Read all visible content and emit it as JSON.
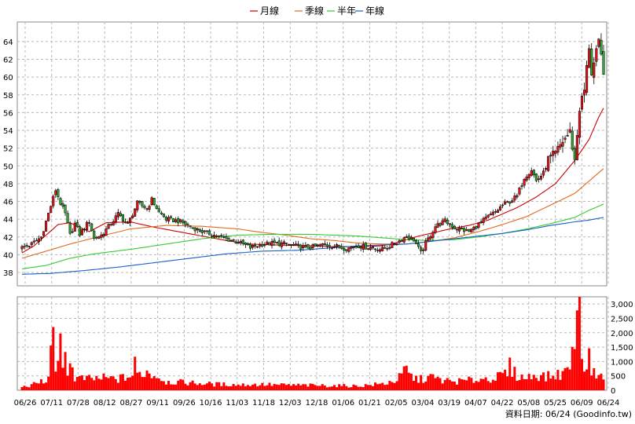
{
  "chart_data": [
    {
      "type": "candlestick",
      "grid": true,
      "legend_position": "top-center",
      "legend": [
        {
          "name": "月線",
          "color": "#cc0000"
        },
        {
          "name": "季線",
          "color": "#e06a1b"
        },
        {
          "name": "半年",
          "color": "#33cc33"
        },
        {
          "name": "年線",
          "color": "#1a5fcc"
        }
      ],
      "yticks": [
        "38",
        "40",
        "42",
        "44",
        "46",
        "48",
        "50",
        "52",
        "54",
        "56",
        "58",
        "60",
        "62",
        "64"
      ],
      "ylim": [
        36.5,
        66.2
      ],
      "x_labels": [
        "06/26",
        "07/11",
        "07/28",
        "08/12",
        "08/27",
        "09/11",
        "09/26",
        "10/16",
        "11/03",
        "11/18",
        "12/03",
        "12/18",
        "01/06",
        "01/21",
        "02/05",
        "03/04",
        "03/19",
        "04/07",
        "04/22",
        "05/08",
        "05/25",
        "06/09",
        "06/24"
      ],
      "series": [
        {
          "name": "月線",
          "color": "#cc0000",
          "knots": [
            [
              0,
              40.2
            ],
            [
              5,
              41.0
            ],
            [
              10,
              42.2
            ],
            [
              15,
              43.4
            ],
            [
              20,
              43.6
            ],
            [
              28,
              42.6
            ],
            [
              35,
              43.6
            ],
            [
              45,
              43.7
            ],
            [
              55,
              43.1
            ],
            [
              65,
              42.6
            ],
            [
              75,
              42.1
            ],
            [
              85,
              41.6
            ],
            [
              95,
              41.2
            ],
            [
              105,
              41.1
            ],
            [
              120,
              41.0
            ],
            [
              130,
              40.9
            ],
            [
              140,
              40.9
            ],
            [
              150,
              41.0
            ],
            [
              155,
              41.3
            ],
            [
              160,
              41.7
            ],
            [
              165,
              42.1
            ],
            [
              170,
              42.4
            ],
            [
              178,
              42.9
            ],
            [
              186,
              43.3
            ],
            [
              194,
              43.9
            ],
            [
              200,
              44.6
            ],
            [
              206,
              45.3
            ],
            [
              214,
              46.5
            ],
            [
              222,
              48.0
            ],
            [
              230,
              50.6
            ],
            [
              236,
              53.0
            ],
            [
              240,
              55.5
            ],
            [
              242,
              56.5
            ]
          ]
        },
        {
          "name": "季線",
          "color": "#e06a1b",
          "knots": [
            [
              0,
              39.6
            ],
            [
              10,
              40.4
            ],
            [
              20,
              41.2
            ],
            [
              30,
              41.9
            ],
            [
              45,
              42.9
            ],
            [
              60,
              43.3
            ],
            [
              75,
              43.2
            ],
            [
              90,
              42.9
            ],
            [
              100,
              42.5
            ],
            [
              110,
              42.2
            ],
            [
              120,
              41.8
            ],
            [
              130,
              41.6
            ],
            [
              140,
              41.3
            ],
            [
              150,
              41.2
            ],
            [
              160,
              41.2
            ],
            [
              170,
              41.5
            ],
            [
              180,
              41.9
            ],
            [
              190,
              42.6
            ],
            [
              200,
              43.4
            ],
            [
              210,
              44.3
            ],
            [
              220,
              45.6
            ],
            [
              230,
              46.9
            ],
            [
              236,
              48.3
            ],
            [
              242,
              49.7
            ]
          ]
        },
        {
          "name": "半年",
          "color": "#33cc33",
          "knots": [
            [
              0,
              38.4
            ],
            [
              10,
              38.8
            ],
            [
              20,
              39.6
            ],
            [
              30,
              40.1
            ],
            [
              45,
              40.6
            ],
            [
              60,
              41.2
            ],
            [
              75,
              41.8
            ],
            [
              90,
              42.2
            ],
            [
              105,
              42.3
            ],
            [
              120,
              42.3
            ],
            [
              130,
              42.2
            ],
            [
              140,
              42.1
            ],
            [
              150,
              41.9
            ],
            [
              160,
              41.7
            ],
            [
              170,
              41.6
            ],
            [
              180,
              41.7
            ],
            [
              190,
              42.0
            ],
            [
              200,
              42.4
            ],
            [
              210,
              42.9
            ],
            [
              220,
              43.5
            ],
            [
              230,
              44.2
            ],
            [
              236,
              45.0
            ],
            [
              242,
              45.7
            ]
          ]
        },
        {
          "name": "年線",
          "color": "#1a5fcc",
          "knots": [
            [
              0,
              37.8
            ],
            [
              12,
              37.9
            ],
            [
              25,
              38.2
            ],
            [
              40,
              38.6
            ],
            [
              55,
              39.1
            ],
            [
              70,
              39.6
            ],
            [
              85,
              40.1
            ],
            [
              100,
              40.4
            ],
            [
              115,
              40.5
            ],
            [
              130,
              40.8
            ],
            [
              140,
              41.0
            ],
            [
              150,
              41.1
            ],
            [
              160,
              41.2
            ],
            [
              170,
              41.5
            ],
            [
              180,
              41.8
            ],
            [
              190,
              42.1
            ],
            [
              200,
              42.4
            ],
            [
              210,
              42.8
            ],
            [
              220,
              43.3
            ],
            [
              230,
              43.7
            ],
            [
              236,
              43.9
            ],
            [
              242,
              44.2
            ]
          ]
        }
      ],
      "price_knots": [
        [
          0,
          40.8
        ],
        [
          4,
          41.2
        ],
        [
          8,
          42.0
        ],
        [
          12,
          45.5
        ],
        [
          14,
          47.3
        ],
        [
          16,
          45.8
        ],
        [
          18,
          44.6
        ],
        [
          20,
          42.2
        ],
        [
          22,
          43.5
        ],
        [
          24,
          42.3
        ],
        [
          28,
          43.8
        ],
        [
          30,
          41.8
        ],
        [
          33,
          42.2
        ],
        [
          37,
          43.5
        ],
        [
          40,
          44.6
        ],
        [
          44,
          43.4
        ],
        [
          48,
          45.8
        ],
        [
          52,
          45.2
        ],
        [
          54,
          46.2
        ],
        [
          57,
          44.8
        ],
        [
          60,
          44.0
        ],
        [
          65,
          43.8
        ],
        [
          70,
          43.2
        ],
        [
          75,
          42.6
        ],
        [
          80,
          42.2
        ],
        [
          85,
          41.8
        ],
        [
          90,
          41.4
        ],
        [
          95,
          40.8
        ],
        [
          100,
          41.2
        ],
        [
          105,
          41.3
        ],
        [
          110,
          41.2
        ],
        [
          115,
          40.9
        ],
        [
          120,
          40.8
        ],
        [
          125,
          41.1
        ],
        [
          130,
          41.0
        ],
        [
          135,
          40.7
        ],
        [
          140,
          41.0
        ],
        [
          145,
          40.8
        ],
        [
          150,
          40.6
        ],
        [
          156,
          41.4
        ],
        [
          160,
          42.1
        ],
        [
          163,
          41.7
        ],
        [
          166,
          40.2
        ],
        [
          168,
          41.3
        ],
        [
          172,
          43.2
        ],
        [
          176,
          43.8
        ],
        [
          180,
          43.0
        ],
        [
          186,
          42.6
        ],
        [
          190,
          43.4
        ],
        [
          194,
          44.3
        ],
        [
          197,
          44.8
        ],
        [
          200,
          45.6
        ],
        [
          203,
          46.0
        ],
        [
          206,
          46.6
        ],
        [
          209,
          48.7
        ],
        [
          212,
          49.6
        ],
        [
          214,
          48.3
        ],
        [
          217,
          49.2
        ],
        [
          219,
          50.7
        ],
        [
          222,
          51.3
        ],
        [
          225,
          52.8
        ],
        [
          228,
          53.8
        ],
        [
          230,
          50.6
        ],
        [
          232,
          56.5
        ],
        [
          234,
          58.5
        ],
        [
          236,
          63.5
        ],
        [
          237,
          60.5
        ],
        [
          238,
          61.5
        ],
        [
          240,
          63.8
        ],
        [
          242,
          60.8
        ]
      ],
      "volume": {
        "yticks": [
          "0",
          "500",
          "1,000",
          "1,500",
          "2,000",
          "2,500",
          "3,000"
        ],
        "ylim": [
          0,
          3250
        ],
        "color": "#ff0000",
        "knots": [
          [
            0,
            120
          ],
          [
            4,
            170
          ],
          [
            8,
            310
          ],
          [
            10,
            220
          ],
          [
            12,
            1180
          ],
          [
            13,
            2720
          ],
          [
            14,
            900
          ],
          [
            15,
            750
          ],
          [
            16,
            1540
          ],
          [
            17,
            600
          ],
          [
            18,
            1360
          ],
          [
            19,
            780
          ],
          [
            20,
            1050
          ],
          [
            21,
            700
          ],
          [
            22,
            420
          ],
          [
            28,
            390
          ],
          [
            34,
            420
          ],
          [
            40,
            390
          ],
          [
            46,
            500
          ],
          [
            47,
            900
          ],
          [
            48,
            560
          ],
          [
            52,
            640
          ],
          [
            57,
            460
          ],
          [
            60,
            300
          ],
          [
            70,
            260
          ],
          [
            80,
            210
          ],
          [
            90,
            190
          ],
          [
            100,
            200
          ],
          [
            110,
            180
          ],
          [
            120,
            170
          ],
          [
            130,
            160
          ],
          [
            140,
            150
          ],
          [
            150,
            220
          ],
          [
            155,
            330
          ],
          [
            158,
            480
          ],
          [
            160,
            800
          ],
          [
            161,
            520
          ],
          [
            165,
            360
          ],
          [
            170,
            460
          ],
          [
            175,
            340
          ],
          [
            180,
            300
          ],
          [
            186,
            340
          ],
          [
            190,
            380
          ],
          [
            194,
            420
          ],
          [
            198,
            450
          ],
          [
            202,
            600
          ],
          [
            203,
            820
          ],
          [
            206,
            500
          ],
          [
            210,
            420
          ],
          [
            214,
            560
          ],
          [
            218,
            460
          ],
          [
            222,
            520
          ],
          [
            226,
            620
          ],
          [
            229,
            1180
          ],
          [
            230,
            2120
          ],
          [
            231,
            3120
          ],
          [
            232,
            2350
          ],
          [
            233,
            1680
          ],
          [
            234,
            820
          ],
          [
            236,
            1100
          ],
          [
            238,
            560
          ],
          [
            240,
            720
          ],
          [
            242,
            380
          ]
        ]
      }
    }
  ],
  "source_text": "資料日期: 06/24  (Goodinfo.tw)"
}
